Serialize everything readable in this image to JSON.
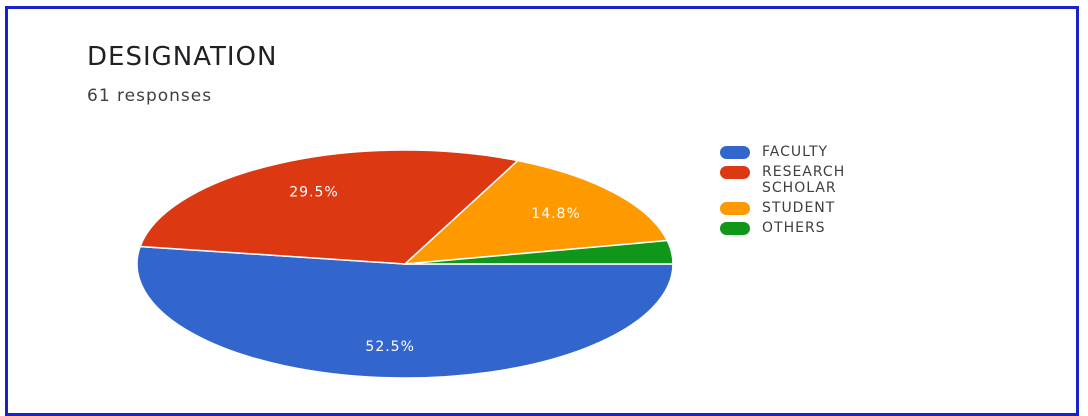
{
  "chart_data": {
    "type": "pie",
    "title": "DESIGNATION",
    "subtitle": "61 responses",
    "legend_placement": "right",
    "categories": [
      "FACULTY",
      "RESEARCH SCHOLAR",
      "STUDENT",
      "OTHERS"
    ],
    "legend_labels": [
      [
        "FACULTY"
      ],
      [
        "RESEARCH",
        "SCHOLAR"
      ],
      [
        "STUDENT"
      ],
      [
        "OTHERS"
      ]
    ],
    "values": [
      52.5,
      29.5,
      14.8,
      3.3
    ],
    "value_labels": [
      "52.5%",
      "29.5%",
      "14.8%",
      ""
    ],
    "colors": [
      "#3366cc",
      "#dc3912",
      "#ff9900",
      "#109618"
    ]
  }
}
